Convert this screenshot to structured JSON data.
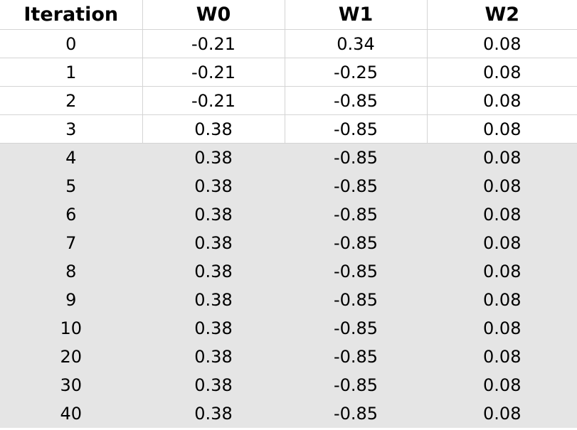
{
  "table": {
    "headers": [
      "Iteration",
      "W0",
      "W1",
      "W2"
    ],
    "rows": [
      [
        "0",
        "-0.21",
        "0.34",
        "0.08"
      ],
      [
        "1",
        "-0.21",
        "-0.25",
        "0.08"
      ],
      [
        "2",
        "-0.21",
        "-0.85",
        "0.08"
      ],
      [
        "3",
        "0.38",
        "-0.85",
        "0.08"
      ],
      [
        "4",
        "0.38",
        "-0.85",
        "0.08"
      ],
      [
        "5",
        "0.38",
        "-0.85",
        "0.08"
      ],
      [
        "6",
        "0.38",
        "-0.85",
        "0.08"
      ],
      [
        "7",
        "0.38",
        "-0.85",
        "0.08"
      ],
      [
        "8",
        "0.38",
        "-0.85",
        "0.08"
      ],
      [
        "9",
        "0.38",
        "-0.85",
        "0.08"
      ],
      [
        "10",
        "0.38",
        "-0.85",
        "0.08"
      ],
      [
        "20",
        "0.38",
        "-0.85",
        "0.08"
      ],
      [
        "30",
        "0.38",
        "-0.85",
        "0.08"
      ],
      [
        "40",
        "0.38",
        "-0.85",
        "0.08"
      ]
    ],
    "shaded_from_row": 4,
    "shade_color": "#e5e5e5",
    "grid_color": "#d4d4d4"
  }
}
